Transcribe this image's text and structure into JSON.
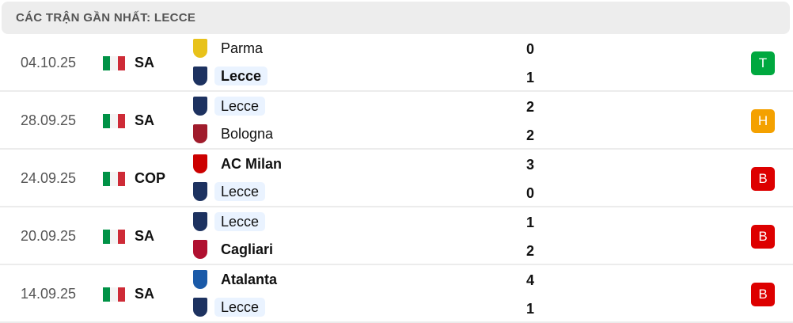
{
  "header": {
    "title": "CÁC TRẬN GẦN NHẤT: LECCE"
  },
  "colors": {
    "win": "#00a83f",
    "draw": "#f4a100",
    "loss": "#dd0000",
    "highlight": "#eaf3ff"
  },
  "matches": [
    {
      "date": "04.10.25",
      "flag": "italy-flag",
      "competition": "SA",
      "home": {
        "name": "Parma",
        "crest": "parma-crest",
        "score": "0",
        "bold": false,
        "highlight": false
      },
      "away": {
        "name": "Lecce",
        "crest": "lecce-crest",
        "score": "1",
        "bold": true,
        "highlight": true
      },
      "result": "T",
      "result_color": "#00a83f"
    },
    {
      "date": "28.09.25",
      "flag": "italy-flag",
      "competition": "SA",
      "home": {
        "name": "Lecce",
        "crest": "lecce-crest",
        "score": "2",
        "bold": false,
        "highlight": true
      },
      "away": {
        "name": "Bologna",
        "crest": "bologna-crest",
        "score": "2",
        "bold": false,
        "highlight": false
      },
      "result": "H",
      "result_color": "#f4a100"
    },
    {
      "date": "24.09.25",
      "flag": "italy-flag",
      "competition": "COP",
      "home": {
        "name": "AC Milan",
        "crest": "ac-milan-crest",
        "score": "3",
        "bold": true,
        "highlight": false
      },
      "away": {
        "name": "Lecce",
        "crest": "lecce-crest",
        "score": "0",
        "bold": false,
        "highlight": true
      },
      "result": "B",
      "result_color": "#dd0000"
    },
    {
      "date": "20.09.25",
      "flag": "italy-flag",
      "competition": "SA",
      "home": {
        "name": "Lecce",
        "crest": "lecce-crest",
        "score": "1",
        "bold": false,
        "highlight": true
      },
      "away": {
        "name": "Cagliari",
        "crest": "cagliari-crest",
        "score": "2",
        "bold": true,
        "highlight": false
      },
      "result": "B",
      "result_color": "#dd0000"
    },
    {
      "date": "14.09.25",
      "flag": "italy-flag",
      "competition": "SA",
      "home": {
        "name": "Atalanta",
        "crest": "atalanta-crest",
        "score": "4",
        "bold": true,
        "highlight": false
      },
      "away": {
        "name": "Lecce",
        "crest": "lecce-crest",
        "score": "1",
        "bold": false,
        "highlight": true
      },
      "result": "B",
      "result_color": "#dd0000"
    }
  ]
}
